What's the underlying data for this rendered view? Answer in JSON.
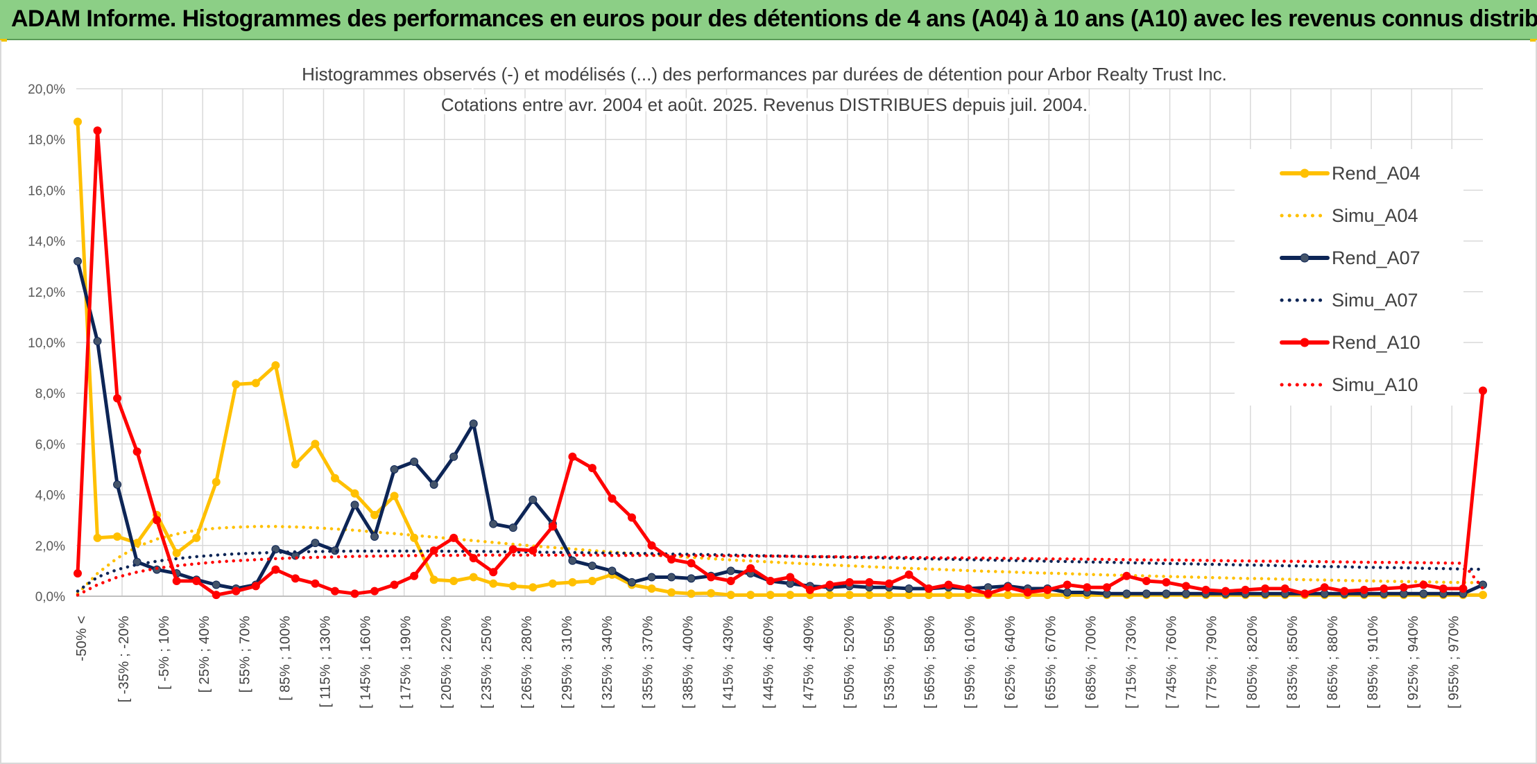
{
  "banner": {
    "title": "ADAM Informe. Histogrammes des performances en euros pour des détentions de 4 ans (A04) à 10 ans (A10) avec les revenus connus distribués"
  },
  "colors": {
    "banner_bg": "#8ccf86",
    "corner_accent": "#f2c200",
    "A04": "#ffc000",
    "A07": "#0d2556",
    "A10": "#ff0000",
    "grid": "#d9d9d9"
  },
  "chart_data": {
    "type": "line",
    "title": "Histogrammes observés (-) et modélisés (...) des performances par durées de détention pour Arbor Realty Trust Inc.",
    "subtitle": "Cotations entre avr. 2004 et août. 2025. Revenus DISTRIBUES depuis juil. 2004.",
    "xlabel": "",
    "ylabel": "",
    "ylim": [
      0,
      20
    ],
    "y_unit": "%",
    "y_ticks": [
      "0,0%",
      "2,0%",
      "4,0%",
      "6,0%",
      "8,0%",
      "10,0%",
      "12,0%",
      "14,0%",
      "16,0%",
      "18,0%",
      "20,0%"
    ],
    "grid": true,
    "legend_position": "right",
    "x_tick_labels": [
      "-50% <",
      "[ -35% ; -20%",
      "[ -5% ; 10%",
      "[ 25% ; 40%",
      "[ 55% ; 70%",
      "[ 85% ; 100%",
      "[ 115% ; 130%",
      "[ 145% ; 160%",
      "[ 175% ; 190%",
      "[ 205% ; 220%",
      "[ 235% ; 250%",
      "[ 265% ; 280%",
      "[ 295% ; 310%",
      "[ 325% ; 340%",
      "[ 355% ; 370%",
      "[ 385% ; 400%",
      "[ 415% ; 430%",
      "[ 445% ; 460%",
      "[ 475% ; 490%",
      "[ 505% ; 520%",
      "[ 535% ; 550%",
      "[ 565% ; 580%",
      "[ 595% ; 610%",
      "[ 625% ; 640%",
      "[ 655% ; 670%",
      "[ 685% ; 700%",
      "[ 715% ; 730%",
      "[ 745% ; 760%",
      "[ 775% ; 790%",
      "[ 805% ; 820%",
      "[ 835% ; 850%",
      "[ 865% ; 880%",
      "[ 895% ; 910%",
      "[ 925% ; 940%",
      "[ 955% ; 970%"
    ],
    "series": [
      {
        "name": "Rend_A04",
        "style": "solid",
        "marker": true,
        "color": "#ffc000",
        "values": [
          18.7,
          2.3,
          2.35,
          2.1,
          3.2,
          1.7,
          2.3,
          4.5,
          8.35,
          8.4,
          9.1,
          5.2,
          6.0,
          4.65,
          4.05,
          3.2,
          3.95,
          2.3,
          0.65,
          0.6,
          0.75,
          0.5,
          0.4,
          0.35,
          0.5,
          0.55,
          0.6,
          0.85,
          0.45,
          0.3,
          0.15,
          0.1,
          0.12,
          0.05,
          0.05,
          0.05,
          0.05,
          0.05,
          0.05,
          0.05,
          0.05,
          0.05,
          0.05,
          0.05,
          0.05,
          0.05,
          0.05,
          0.05,
          0.05,
          0.05,
          0.05,
          0.05,
          0.05,
          0.05,
          0.05,
          0.05,
          0.05,
          0.05,
          0.05,
          0.05,
          0.05,
          0.05,
          0.05,
          0.05,
          0.05,
          0.05,
          0.05,
          0.05,
          0.05,
          0.05,
          0.05,
          0.05
        ]
      },
      {
        "name": "Simu_A04",
        "style": "dotted",
        "marker": false,
        "color": "#ffc000",
        "values": [
          0.1,
          0.9,
          1.5,
          1.95,
          2.25,
          2.45,
          2.6,
          2.68,
          2.72,
          2.75,
          2.75,
          2.73,
          2.7,
          2.65,
          2.6,
          2.53,
          2.47,
          2.4,
          2.33,
          2.26,
          2.19,
          2.12,
          2.05,
          1.98,
          1.92,
          1.86,
          1.8,
          1.74,
          1.68,
          1.63,
          1.58,
          1.53,
          1.48,
          1.43,
          1.39,
          1.35,
          1.31,
          1.27,
          1.23,
          1.2,
          1.16,
          1.13,
          1.1,
          1.07,
          1.04,
          1.01,
          0.98,
          0.96,
          0.93,
          0.91,
          0.89,
          0.86,
          0.84,
          0.82,
          0.8,
          0.78,
          0.76,
          0.74,
          0.72,
          0.7,
          0.69,
          0.67,
          0.65,
          0.64,
          0.62,
          0.61,
          0.59,
          0.58,
          0.57,
          0.55,
          0.54,
          0.53
        ]
      },
      {
        "name": "Rend_A07",
        "style": "solid",
        "marker": true,
        "color": "#0d2556",
        "values": [
          13.2,
          10.05,
          4.4,
          1.35,
          1.05,
          0.9,
          0.65,
          0.45,
          0.3,
          0.45,
          1.85,
          1.6,
          2.1,
          1.8,
          3.6,
          2.35,
          5.0,
          5.3,
          4.4,
          5.5,
          6.8,
          2.85,
          2.7,
          3.8,
          2.85,
          1.4,
          1.2,
          1.0,
          0.55,
          0.75,
          0.75,
          0.7,
          0.8,
          1.0,
          0.9,
          0.6,
          0.5,
          0.4,
          0.35,
          0.4,
          0.35,
          0.35,
          0.3,
          0.3,
          0.35,
          0.3,
          0.35,
          0.4,
          0.3,
          0.3,
          0.15,
          0.15,
          0.1,
          0.1,
          0.1,
          0.1,
          0.1,
          0.1,
          0.1,
          0.1,
          0.1,
          0.1,
          0.1,
          0.1,
          0.1,
          0.1,
          0.1,
          0.1,
          0.1,
          0.1,
          0.1,
          0.45
        ]
      },
      {
        "name": "Simu_A07",
        "style": "dotted",
        "marker": false,
        "color": "#0d2556",
        "values": [
          0.2,
          0.75,
          1.05,
          1.25,
          1.38,
          1.48,
          1.56,
          1.62,
          1.67,
          1.7,
          1.73,
          1.75,
          1.76,
          1.77,
          1.78,
          1.78,
          1.78,
          1.78,
          1.78,
          1.77,
          1.77,
          1.76,
          1.75,
          1.74,
          1.73,
          1.72,
          1.71,
          1.7,
          1.69,
          1.68,
          1.66,
          1.65,
          1.64,
          1.62,
          1.61,
          1.59,
          1.58,
          1.56,
          1.55,
          1.53,
          1.52,
          1.5,
          1.49,
          1.47,
          1.46,
          1.44,
          1.43,
          1.41,
          1.4,
          1.38,
          1.37,
          1.35,
          1.34,
          1.32,
          1.31,
          1.29,
          1.28,
          1.26,
          1.25,
          1.23,
          1.22,
          1.2,
          1.19,
          1.17,
          1.16,
          1.14,
          1.13,
          1.12,
          1.1,
          1.09,
          1.07,
          1.06
        ]
      },
      {
        "name": "Rend_A10",
        "style": "solid",
        "marker": true,
        "color": "#ff0000",
        "values": [
          0.9,
          18.35,
          7.8,
          5.7,
          3.0,
          0.6,
          0.6,
          0.05,
          0.2,
          0.4,
          1.05,
          0.7,
          0.5,
          0.2,
          0.1,
          0.2,
          0.45,
          0.8,
          1.8,
          2.3,
          1.5,
          0.95,
          1.85,
          1.8,
          2.75,
          5.5,
          5.05,
          3.85,
          3.1,
          2.0,
          1.45,
          1.3,
          0.75,
          0.6,
          1.1,
          0.6,
          0.75,
          0.25,
          0.45,
          0.55,
          0.55,
          0.5,
          0.85,
          0.3,
          0.45,
          0.3,
          0.1,
          0.35,
          0.15,
          0.25,
          0.45,
          0.35,
          0.35,
          0.8,
          0.6,
          0.55,
          0.4,
          0.25,
          0.2,
          0.25,
          0.3,
          0.3,
          0.1,
          0.35,
          0.2,
          0.25,
          0.3,
          0.35,
          0.45,
          0.3,
          0.3,
          8.1
        ]
      },
      {
        "name": "Simu_A10",
        "style": "dotted",
        "marker": false,
        "color": "#ff0000",
        "values": [
          0.05,
          0.45,
          0.75,
          0.95,
          1.1,
          1.2,
          1.28,
          1.35,
          1.4,
          1.44,
          1.48,
          1.51,
          1.53,
          1.55,
          1.57,
          1.58,
          1.59,
          1.6,
          1.61,
          1.61,
          1.62,
          1.62,
          1.62,
          1.62,
          1.62,
          1.62,
          1.62,
          1.61,
          1.61,
          1.61,
          1.6,
          1.6,
          1.59,
          1.59,
          1.58,
          1.58,
          1.57,
          1.56,
          1.56,
          1.55,
          1.54,
          1.54,
          1.53,
          1.52,
          1.51,
          1.51,
          1.5,
          1.49,
          1.48,
          1.47,
          1.47,
          1.46,
          1.45,
          1.44,
          1.43,
          1.43,
          1.42,
          1.41,
          1.4,
          1.39,
          1.38,
          1.38,
          1.37,
          1.36,
          1.35,
          1.34,
          1.33,
          1.33,
          1.32,
          1.31,
          1.3,
          0.3
        ]
      }
    ]
  }
}
